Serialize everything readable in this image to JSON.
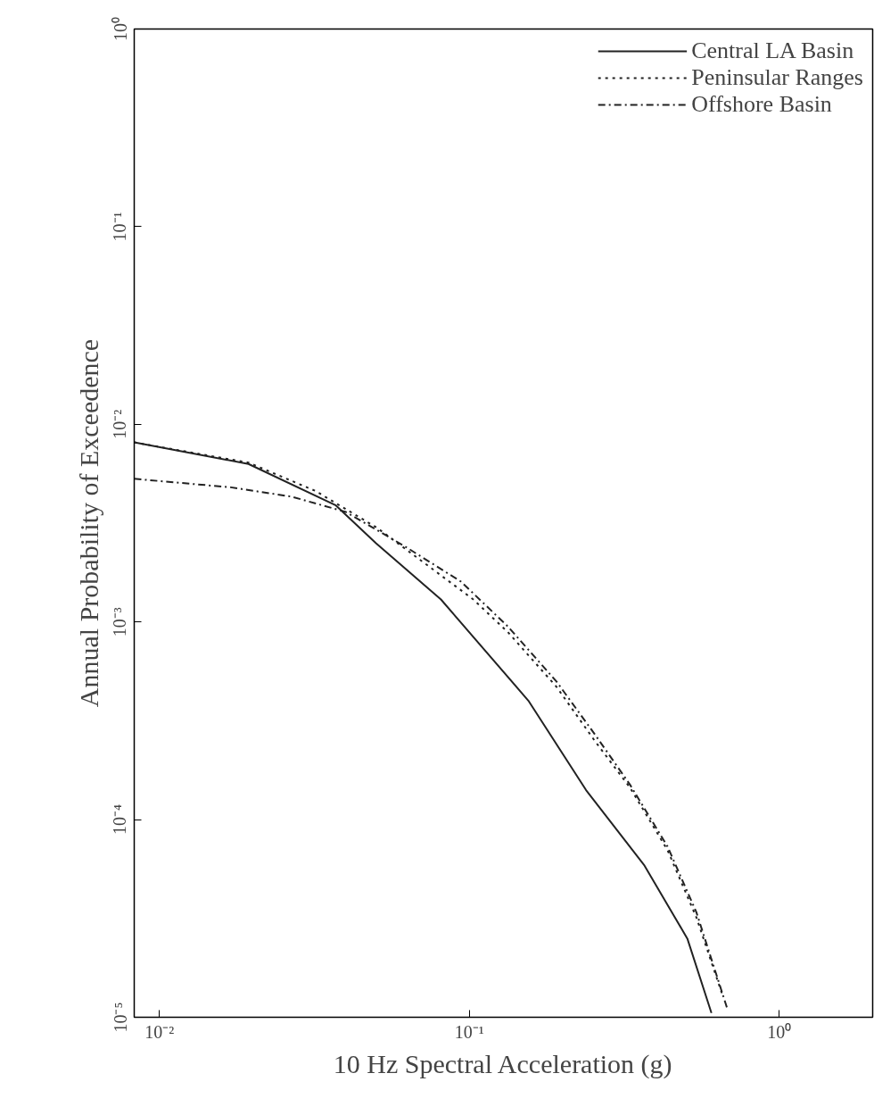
{
  "chart_data": {
    "type": "line",
    "xlabel": "10 Hz Spectral Acceleration (g)",
    "ylabel": "Annual Probability of Exceedence",
    "log": "xy",
    "grid": false,
    "legend": "top right",
    "xlim": [
      0.0083,
      2
    ],
    "ylim": [
      1e-05,
      1
    ],
    "xticks": [
      {
        "value": 0.01,
        "label": "10⁻²"
      },
      {
        "value": 0.1,
        "label": "10⁻¹"
      },
      {
        "value": 1,
        "label": "10⁰"
      }
    ],
    "yticks": [
      {
        "value": 1e-05,
        "label": "10⁻⁵"
      },
      {
        "value": 0.0001,
        "label": "10⁻⁴"
      },
      {
        "value": 0.001,
        "label": "10⁻³"
      },
      {
        "value": 0.01,
        "label": "10⁻²"
      },
      {
        "value": 0.1,
        "label": "10⁻¹"
      },
      {
        "value": 1,
        "label": "10⁰"
      }
    ],
    "series": [
      {
        "name": "Central LA Basin",
        "color": "#222222",
        "line_style": "solid",
        "x": [
          0.0083,
          0.0194,
          0.037,
          0.05,
          0.081,
          0.155,
          0.238,
          0.366,
          0.505,
          0.604
        ],
        "values": [
          0.0081,
          0.0063,
          0.0039,
          0.0025,
          0.0013,
          0.0004,
          0.000141,
          5.9e-05,
          2.5e-05,
          1.05e-05
        ]
      },
      {
        "name": "Peninsular Ranges",
        "color": "#222222",
        "line_style": "dotted",
        "x": [
          0.0083,
          0.0194,
          0.0319,
          0.0503,
          0.103,
          0.133,
          0.191,
          0.254,
          0.33,
          0.436,
          0.54,
          0.655
        ],
        "values": [
          0.0081,
          0.0064,
          0.0046,
          0.003,
          0.0013,
          0.00089,
          0.00047,
          0.00025,
          0.000145,
          7e-05,
          3.2e-05,
          1.3e-05
        ]
      },
      {
        "name": "Offshore Basin",
        "color": "#222222",
        "line_style": "dashdot",
        "x": [
          0.0083,
          0.017,
          0.0268,
          0.04,
          0.0623,
          0.094,
          0.133,
          0.191,
          0.254,
          0.33,
          0.436,
          0.54,
          0.68
        ],
        "values": [
          0.0053,
          0.0048,
          0.0043,
          0.0036,
          0.0024,
          0.0016,
          0.00095,
          0.0005,
          0.00027,
          0.00015,
          7.3e-05,
          3.4e-05,
          1.1e-05
        ]
      }
    ]
  }
}
